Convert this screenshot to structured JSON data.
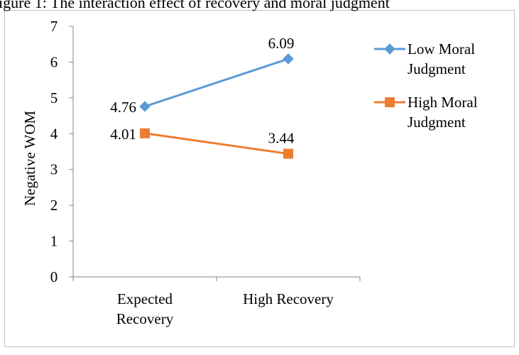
{
  "chart_data": {
    "type": "line",
    "title": "",
    "partial_caption": "igure 1: The interaction effect of recovery and moral judgment",
    "xlabel": "",
    "ylabel": "Negative WOM",
    "ylim": [
      0,
      7
    ],
    "yticks": [
      "0",
      "1",
      "2",
      "3",
      "4",
      "5",
      "6",
      "7"
    ],
    "categories": [
      "Expected Recovery",
      "High Recovery"
    ],
    "category_lines": [
      [
        "Expected",
        "Recovery"
      ],
      [
        "High Recovery"
      ]
    ],
    "grid": false,
    "legend_position": "right",
    "series": [
      {
        "name": "Low Moral Judgment",
        "legend_lines": [
          "Low Moral",
          "Judgment"
        ],
        "values": [
          4.76,
          6.09
        ],
        "data_labels": [
          "4.76",
          "6.09"
        ],
        "color": "#5B9BD5",
        "marker": "diamond"
      },
      {
        "name": "High Moral Judgment",
        "legend_lines": [
          "High Moral",
          "Judgment"
        ],
        "values": [
          4.01,
          3.44
        ],
        "data_labels": [
          "4.01",
          "3.44"
        ],
        "color": "#ED7D31",
        "marker": "square"
      }
    ]
  }
}
